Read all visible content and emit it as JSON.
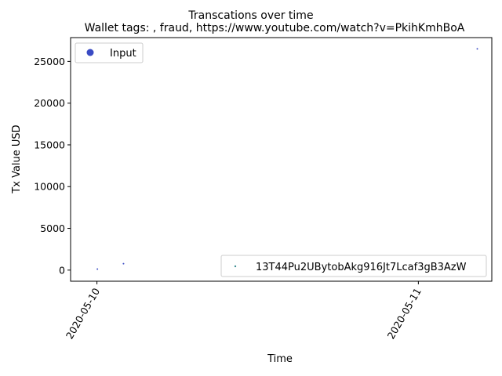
{
  "chart_data": {
    "type": "scatter",
    "title": "Transcations over time",
    "subtitle": "Wallet tags: , fraud, https://www.youtube.com/watch?v=PkihKmhBoA",
    "xlabel": "Time",
    "ylabel": "Tx Value USD",
    "x_ticks": [
      "2020-05-10",
      "2020-05-11"
    ],
    "xlim": [
      "2020-05-09T22:02",
      "2020-05-11T05:29"
    ],
    "ylim": [
      -1330,
      27850
    ],
    "y_ticks": [
      0,
      5000,
      10000,
      15000,
      20000,
      25000
    ],
    "y_tick_labels": [
      "0",
      "5000",
      "10000",
      "15000",
      "20000",
      "25000"
    ],
    "grid": false,
    "legends": [
      {
        "placement": "upper-left",
        "label": "Input",
        "color": "#3a4bc4"
      },
      {
        "placement": "lower-right",
        "label": "13T44Pu2UBytobAkg916Jt7Lcaf3gB3AzW",
        "color": "#3e8e94"
      }
    ],
    "series": [
      {
        "name": "Input",
        "color": "#3a4bc4",
        "points": [
          {
            "x": "2020-05-10T00:02",
            "y": 130
          },
          {
            "x": "2020-05-10T01:59",
            "y": 770
          },
          {
            "x": "2020-05-11T04:24",
            "y": 26500
          }
        ]
      }
    ]
  }
}
